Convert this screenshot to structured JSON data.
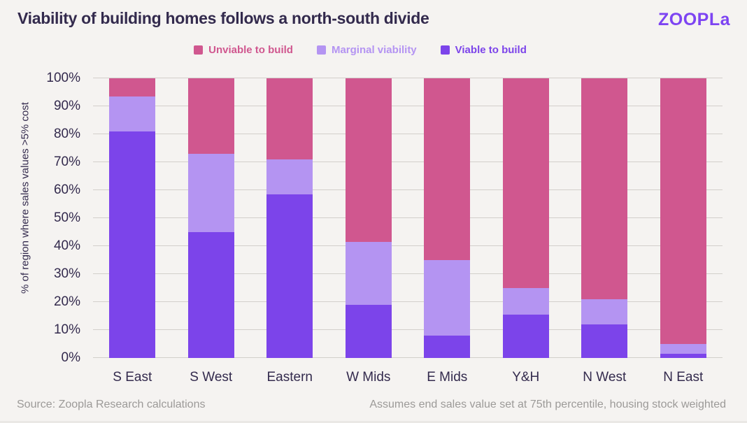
{
  "header": {
    "title": "Viability of building homes follows a north-south divide",
    "logo_text": "ZOOPLa"
  },
  "footer": {
    "source": "Source: Zoopla Research calculations",
    "note": "Assumes end sales value set at 75th percentile, housing stock weighted"
  },
  "colors": {
    "background": "#F5F3F1",
    "text_dark": "#332A4D",
    "text_muted": "#9C9A98",
    "gridline": "#D2CFCB",
    "brand_purple": "#7D44F2",
    "unviable_pink": "#D0578F",
    "marginal_lilac": "#B494F2",
    "viable_purple": "#7C44EA"
  },
  "chart_data": {
    "type": "bar",
    "stacked": true,
    "title": "Viability of building homes follows a north-south divide",
    "categories": [
      "S East",
      "S West",
      "Eastern",
      "W Mids",
      "E Mids",
      "Y&H",
      "N West",
      "N East"
    ],
    "series": [
      {
        "name": "Viable to build",
        "color": "#7C44EA",
        "values": [
          81,
          45,
          58.5,
          19,
          8,
          15.5,
          12,
          1.5
        ]
      },
      {
        "name": "Marginal viability",
        "color": "#B494F2",
        "values": [
          12.5,
          28,
          12.5,
          22.5,
          27,
          9.5,
          9,
          3.5
        ]
      },
      {
        "name": "Unviable to build",
        "color": "#D0578F",
        "values": [
          6.5,
          27,
          29,
          58.5,
          65,
          75,
          79,
          95
        ]
      }
    ],
    "stack_order_bottom_to_top": [
      "Viable to build",
      "Marginal viability",
      "Unviable to build"
    ],
    "legend": [
      {
        "label": "Unviable to build",
        "color": "#D0578F"
      },
      {
        "label": "Marginal viability",
        "color": "#B494F2"
      },
      {
        "label": "Viable to build",
        "color": "#7C44EA"
      }
    ],
    "legend_position": "top",
    "xlabel": "",
    "ylabel": "% of region where sales values >5% cost",
    "ylim": [
      0,
      100
    ],
    "ytick_step": 10,
    "yticks": [
      "0%",
      "10%",
      "20%",
      "30%",
      "40%",
      "50%",
      "60%",
      "70%",
      "80%",
      "90%",
      "100%"
    ],
    "grid": true
  }
}
